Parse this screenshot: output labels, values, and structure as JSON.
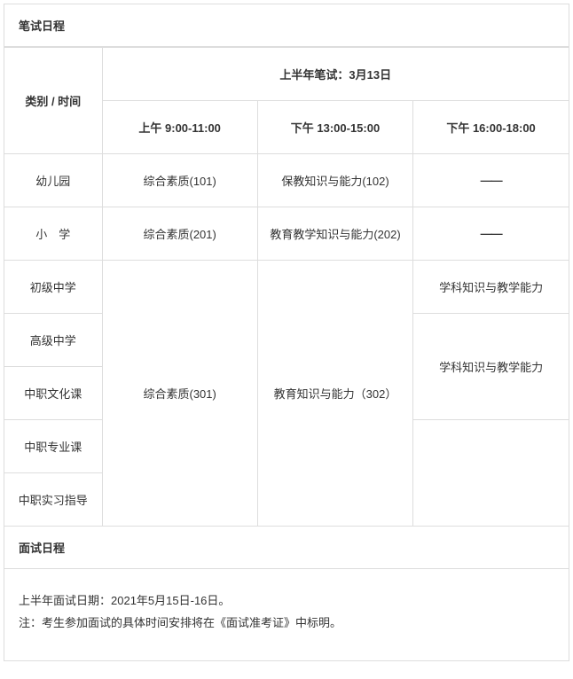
{
  "written": {
    "header": "笔试日程",
    "category_time_label": "类别  /   时间",
    "exam_title": "上半年笔试：3月13日",
    "time_slots": {
      "morning": "上午  9:00-11:00",
      "afternoon1": "下午  13:00-15:00",
      "afternoon2": "下午  16:00-18:00"
    },
    "rows": {
      "kindergarten": {
        "label": "幼儿园",
        "c1": "综合素质(101)",
        "c2": "保教知识与能力(102)",
        "c3": "——"
      },
      "primary": {
        "label": "小　学",
        "c1": "综合素质(201)",
        "c2": "教育教学知识与能力(202)",
        "c3": "——"
      },
      "junior": {
        "label": "初级中学",
        "c3": "学科知识与教学能力"
      },
      "senior": {
        "label": "高级中学",
        "c3_merged": "学科知识与教学能力"
      },
      "vocational_culture": {
        "label": "中职文化课"
      },
      "vocational_major": {
        "label": "中职专业课"
      },
      "vocational_intern": {
        "label": "中职实习指导"
      },
      "merged_middle": {
        "c1": "综合素质(301)",
        "c2": "教育知识与能力（302）"
      }
    }
  },
  "interview": {
    "header": "面试日程",
    "line1": "上半年面试日期：2021年5月15日-16日。",
    "line2": "注：考生参加面试的具体时间安排将在《面试准考证》中标明。"
  }
}
